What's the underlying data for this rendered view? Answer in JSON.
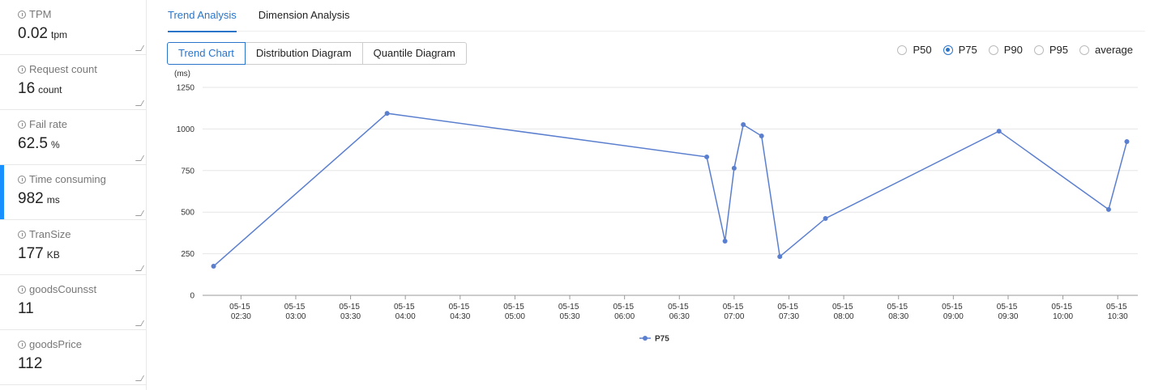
{
  "sidebar": {
    "active": 3,
    "metrics": [
      {
        "label": "TPM",
        "value": "0.02",
        "unit": "tpm"
      },
      {
        "label": "Request count",
        "value": "16",
        "unit": "count"
      },
      {
        "label": "Fail rate",
        "value": "62.5",
        "unit": "%"
      },
      {
        "label": "Time consuming",
        "value": "982",
        "unit": "ms"
      },
      {
        "label": "TranSize",
        "value": "177",
        "unit": "KB"
      },
      {
        "label": "goodsCounsst",
        "value": "11"
      },
      {
        "label": "goodsPrice",
        "value": "112"
      }
    ]
  },
  "tabs": {
    "active": 0,
    "items": [
      "Trend Analysis",
      "Dimension Analysis"
    ]
  },
  "views": {
    "active": 0,
    "items": [
      "Trend Chart",
      "Distribution Diagram",
      "Quantile Diagram"
    ]
  },
  "options": {
    "active": 1,
    "items": [
      "P50",
      "P75",
      "P90",
      "P95",
      "average"
    ]
  },
  "chart_data": {
    "type": "line",
    "y_unit": "(ms)",
    "x": [
      "05-15 02:15",
      "05-15 03:50",
      "05-15 06:45",
      "05-15 06:55",
      "05-15 07:00",
      "05-15 07:05",
      "05-15 07:15",
      "05-15 07:25",
      "05-15 07:50",
      "05-15 09:25",
      "05-15 10:25",
      "05-15 10:35"
    ],
    "series": [
      {
        "name": "P75",
        "color": "#5b7fcf",
        "values": [
          175,
          1094,
          832,
          326,
          764,
          1026,
          958,
          233,
          462,
          987,
          516,
          924
        ]
      }
    ],
    "xlim": [
      "05-15 02:09",
      "05-15 10:41"
    ],
    "xticks": [
      "05-15 02:30",
      "05-15 03:00",
      "05-15 03:30",
      "05-15 04:00",
      "05-15 04:30",
      "05-15 05:00",
      "05-15 05:30",
      "05-15 06:00",
      "05-15 06:30",
      "05-15 07:00",
      "05-15 07:30",
      "05-15 08:00",
      "05-15 08:30",
      "05-15 09:00",
      "05-15 09:30",
      "05-15 10:00",
      "05-15 10:30"
    ],
    "ylim": [
      0,
      1250
    ],
    "yticks": [
      0,
      250,
      500,
      750,
      1000,
      1250
    ],
    "grid": true,
    "legend": "bottom"
  }
}
